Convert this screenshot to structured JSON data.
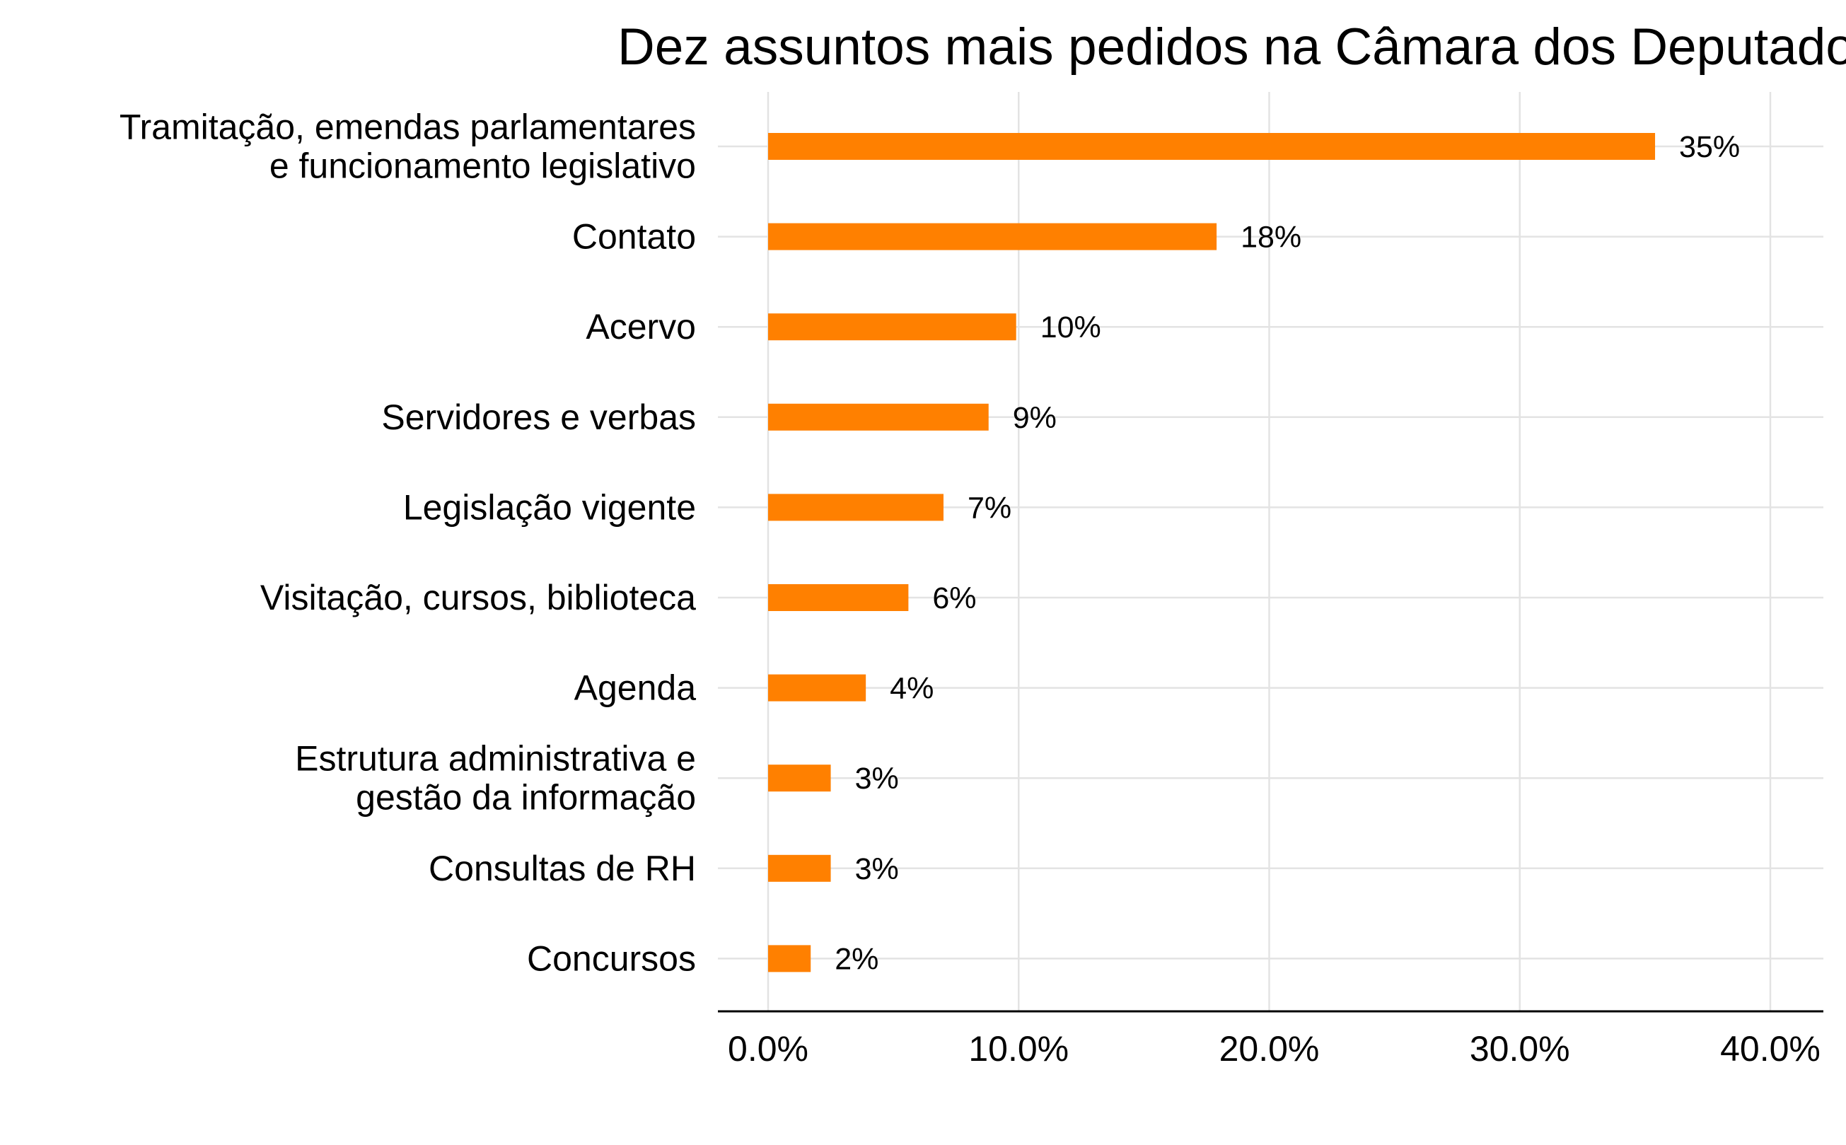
{
  "chart_data": {
    "type": "bar",
    "orientation": "horizontal",
    "title": "Dez assuntos mais pedidos na Câmara dos Deputados",
    "xlabel": "",
    "ylabel": "",
    "xlim": [
      0,
      40
    ],
    "x_ticks": [
      0,
      10,
      20,
      30,
      40
    ],
    "x_tick_labels": [
      "0.0%",
      "10.0%",
      "20.0%",
      "30.0%",
      "40.0%"
    ],
    "grid": true,
    "legend": "none",
    "bar_color": "#ff8000",
    "categories": [
      [
        "Tramitação, emendas parlamentares",
        "e funcionamento legislativo"
      ],
      [
        "Contato"
      ],
      [
        "Acervo"
      ],
      [
        "Servidores e verbas"
      ],
      [
        "Legislação vigente"
      ],
      [
        "Visitação, cursos, biblioteca"
      ],
      [
        "Agenda"
      ],
      [
        "Estrutura administrativa e",
        "gestão da informação"
      ],
      [
        "Consultas de RH"
      ],
      [
        "Concursos"
      ]
    ],
    "values": [
      35.4,
      17.9,
      9.9,
      8.8,
      7.0,
      5.6,
      3.9,
      2.5,
      2.5,
      1.7
    ],
    "data_labels": [
      "35%",
      "18%",
      "10%",
      "9%",
      "7%",
      "6%",
      "4%",
      "3%",
      "3%",
      "2%"
    ]
  }
}
